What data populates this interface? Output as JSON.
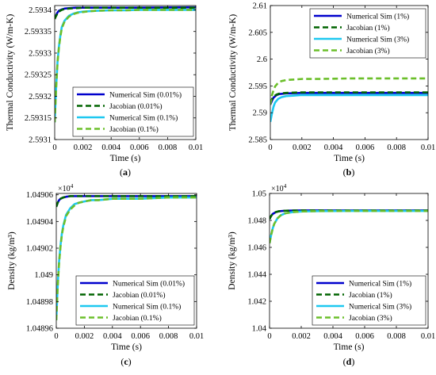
{
  "chart_data": [
    {
      "id": "a",
      "type": "line",
      "caption": "(a)",
      "xlabel": "Time (s)",
      "ylabel": "Thermal Conductivity (W/m-K)",
      "xlim": [
        0,
        0.01
      ],
      "ylim": [
        2.5931,
        2.59341
      ],
      "xticks": [
        0,
        0.002,
        0.004,
        0.006,
        0.008,
        0.01
      ],
      "xtick_labels": [
        "0",
        "0.002",
        "0.004",
        "0.006",
        "0.008",
        "0.01"
      ],
      "yticks": [
        2.5931,
        2.59315,
        2.5932,
        2.59325,
        2.5933,
        2.59335,
        2.5934
      ],
      "ytick_labels": [
        "2.5931",
        "2.59315",
        "2.5932",
        "2.59325",
        "2.5933",
        "2.59335",
        "2.5934"
      ],
      "exponent": "",
      "legend_position": "bottom-right",
      "series": [
        {
          "name": "Numerical Sim (0.01%)",
          "color": "#0000cd",
          "dash": "solid",
          "x": [
            0,
            0.0001,
            0.0002,
            0.0003,
            0.0005,
            0.0007,
            0.001,
            0.0015,
            0.002,
            0.003,
            0.005,
            0.01
          ],
          "y": [
            2.59338,
            2.593388,
            2.593394,
            2.593398,
            2.593401,
            2.593403,
            2.593404,
            2.593405,
            2.593405,
            2.593405,
            2.593405,
            2.593406
          ]
        },
        {
          "name": "Jacobian (0.01%)",
          "color": "#006400",
          "dash": "dashed",
          "x": [
            0,
            0.0001,
            0.0002,
            0.0003,
            0.0005,
            0.0007,
            0.001,
            0.0015,
            0.002,
            0.003,
            0.005,
            0.01
          ],
          "y": [
            2.593379,
            2.593386,
            2.593392,
            2.593396,
            2.5934,
            2.593402,
            2.593403,
            2.593404,
            2.593405,
            2.593405,
            2.593405,
            2.593405
          ]
        },
        {
          "name": "Numerical Sim (0.1%)",
          "color": "#1ec8f0",
          "dash": "solid",
          "x": [
            0,
            0.0001,
            0.0002,
            0.0003,
            0.0004,
            0.0005,
            0.0007,
            0.001,
            0.0013,
            0.0016,
            0.002,
            0.0025,
            0.003,
            0.004,
            0.005,
            0.006,
            0.008,
            0.01
          ],
          "y": [
            2.59314,
            2.59322,
            2.59328,
            2.593315,
            2.59334,
            2.59336,
            2.593375,
            2.593386,
            2.593391,
            2.593394,
            2.593396,
            2.593397,
            2.593398,
            2.593399,
            2.593399,
            2.5934,
            2.5934,
            2.5934
          ]
        },
        {
          "name": "Jacobian (0.1%)",
          "color": "#6bbf2a",
          "dash": "dashed",
          "x": [
            0,
            0.0001,
            0.0002,
            0.0003,
            0.0004,
            0.0005,
            0.0007,
            0.001,
            0.0013,
            0.0016,
            0.002,
            0.0025,
            0.003,
            0.004,
            0.005,
            0.006,
            0.008,
            0.01
          ],
          "y": [
            2.59314,
            2.593218,
            2.593278,
            2.593313,
            2.593338,
            2.593357,
            2.593373,
            2.593384,
            2.59339,
            2.593393,
            2.593395,
            2.593397,
            2.593398,
            2.593399,
            2.593399,
            2.5934,
            2.5934,
            2.5934
          ]
        }
      ]
    },
    {
      "id": "b",
      "type": "line",
      "caption": "(b)",
      "xlabel": "Time (s)",
      "ylabel": "Thermal Conductivity (W/m-K)",
      "xlim": [
        0,
        0.01
      ],
      "ylim": [
        2.585,
        2.61
      ],
      "xticks": [
        0,
        0.002,
        0.004,
        0.006,
        0.008,
        0.01
      ],
      "xtick_labels": [
        "0",
        "0.002",
        "0.004",
        "0.006",
        "0.008",
        "0.01"
      ],
      "yticks": [
        2.585,
        2.59,
        2.595,
        2.6,
        2.605,
        2.61
      ],
      "ytick_labels": [
        "2.585",
        "2.59",
        "2.595",
        "2.6",
        "2.605",
        "2.61"
      ],
      "exponent": "",
      "legend_position": "top-right",
      "series": [
        {
          "name": "Numerical Sim (1%)",
          "color": "#0000cd",
          "dash": "solid",
          "x": [
            0,
            0.0001,
            0.0002,
            0.0004,
            0.0006,
            0.001,
            0.0015,
            0.002,
            0.004,
            0.01
          ],
          "y": [
            2.5915,
            2.5922,
            2.5928,
            2.5933,
            2.5935,
            2.5936,
            2.59365,
            2.5937,
            2.5937,
            2.5937
          ]
        },
        {
          "name": "Jacobian (1%)",
          "color": "#006400",
          "dash": "dashed",
          "x": [
            0,
            0.0001,
            0.0002,
            0.0004,
            0.0006,
            0.001,
            0.0015,
            0.002,
            0.004,
            0.01
          ],
          "y": [
            2.5918,
            2.5925,
            2.593,
            2.5934,
            2.5936,
            2.5937,
            2.59375,
            2.5938,
            2.5938,
            2.5938
          ]
        },
        {
          "name": "Numerical Sim (3%)",
          "color": "#1ec8f0",
          "dash": "solid",
          "x": [
            0,
            0.0001,
            0.0002,
            0.0003,
            0.0005,
            0.0007,
            0.001,
            0.0015,
            0.002,
            0.003,
            0.005,
            0.01
          ],
          "y": [
            2.5883,
            2.5898,
            2.5911,
            2.5919,
            2.5926,
            2.5929,
            2.5931,
            2.5932,
            2.5933,
            2.5933,
            2.5933,
            2.5933
          ]
        },
        {
          "name": "Jacobian (3%)",
          "color": "#6bbf2a",
          "dash": "dashed",
          "x": [
            0,
            0.0001,
            0.0002,
            0.0003,
            0.0005,
            0.0007,
            0.001,
            0.0015,
            0.002,
            0.003,
            0.005,
            0.01
          ],
          "y": [
            2.5915,
            2.5932,
            2.5942,
            2.5949,
            2.5956,
            2.5959,
            2.5961,
            2.5962,
            2.5963,
            2.5963,
            2.5964,
            2.5964
          ]
        }
      ]
    },
    {
      "id": "c",
      "type": "line",
      "caption": "(c)",
      "xlabel": "Time (s)",
      "ylabel": "Density (kg/m³)",
      "xlim": [
        0,
        0.01
      ],
      "ylim": [
        1.04896,
        1.049061
      ],
      "xticks": [
        0,
        0.002,
        0.004,
        0.006,
        0.008,
        0.01
      ],
      "xtick_labels": [
        "0",
        "0.002",
        "0.004",
        "0.006",
        "0.008",
        "0.01"
      ],
      "yticks": [
        1.04896,
        1.04898,
        1.049,
        1.04902,
        1.04904,
        1.04906
      ],
      "ytick_labels": [
        "1.04896",
        "1.04898",
        "1.049",
        "1.04902",
        "1.04904",
        "1.04906"
      ],
      "exponent": "4",
      "legend_position": "bottom-right",
      "series": [
        {
          "name": "Numerical Sim (0.01%)",
          "color": "#0000cd",
          "dash": "solid",
          "x": [
            0,
            0.0001,
            0.0002,
            0.0003,
            0.0005,
            0.0007,
            0.001,
            0.0015,
            0.002,
            0.004,
            0.01
          ],
          "y": [
            1.049051,
            1.049054,
            1.049056,
            1.049057,
            1.049058,
            1.0490585,
            1.049059,
            1.049059,
            1.049059,
            1.049059,
            1.049059
          ]
        },
        {
          "name": "Jacobian (0.01%)",
          "color": "#006400",
          "dash": "dashed",
          "x": [
            0,
            0.0001,
            0.0002,
            0.0003,
            0.0005,
            0.0007,
            0.001,
            0.0015,
            0.002,
            0.004,
            0.01
          ],
          "y": [
            1.049051,
            1.049054,
            1.049056,
            1.049057,
            1.049058,
            1.0490585,
            1.049059,
            1.049059,
            1.049059,
            1.049059,
            1.049059
          ]
        },
        {
          "name": "Numerical Sim (0.1%)",
          "color": "#1ec8f0",
          "dash": "solid",
          "x": [
            0,
            0.0001,
            0.0002,
            0.0003,
            0.0004,
            0.0005,
            0.0007,
            0.001,
            0.0013,
            0.0016,
            0.002,
            0.0025,
            0.003,
            0.004,
            0.005,
            0.006,
            0.008,
            0.01
          ],
          "y": [
            1.048966,
            1.048992,
            1.04901,
            1.049022,
            1.049031,
            1.049037,
            1.049045,
            1.04905,
            1.049053,
            1.049054,
            1.049055,
            1.049056,
            1.049056,
            1.049057,
            1.049057,
            1.049057,
            1.049058,
            1.049058
          ]
        },
        {
          "name": "Jacobian (0.1%)",
          "color": "#6bbf2a",
          "dash": "dashed",
          "x": [
            0,
            0.0001,
            0.0002,
            0.0003,
            0.0004,
            0.0005,
            0.0007,
            0.001,
            0.0013,
            0.0016,
            0.002,
            0.0025,
            0.003,
            0.004,
            0.005,
            0.006,
            0.008,
            0.01
          ],
          "y": [
            1.048966,
            1.048991,
            1.049009,
            1.049021,
            1.04903,
            1.049036,
            1.049044,
            1.049049,
            1.049052,
            1.049054,
            1.049055,
            1.049056,
            1.049056,
            1.049057,
            1.049057,
            1.049057,
            1.049058,
            1.049058
          ]
        }
      ]
    },
    {
      "id": "d",
      "type": "line",
      "caption": "(d)",
      "xlabel": "Time (s)",
      "ylabel": "Density (kg/m³)",
      "xlim": [
        0,
        0.01
      ],
      "ylim": [
        1.04,
        1.05
      ],
      "xticks": [
        0,
        0.002,
        0.004,
        0.006,
        0.008,
        0.01
      ],
      "xtick_labels": [
        "0",
        "0.002",
        "0.004",
        "0.006",
        "0.008",
        "0.01"
      ],
      "yticks": [
        1.04,
        1.042,
        1.044,
        1.046,
        1.048,
        1.05
      ],
      "ytick_labels": [
        "1.04",
        "1.042",
        "1.044",
        "1.046",
        "1.048",
        "1.05"
      ],
      "exponent": "4",
      "legend_position": "bottom-right",
      "series": [
        {
          "name": "Numerical Sim (1%)",
          "color": "#0000cd",
          "dash": "solid",
          "x": [
            0,
            0.0001,
            0.0002,
            0.0004,
            0.0006,
            0.001,
            0.0015,
            0.002,
            0.004,
            0.01
          ],
          "y": [
            1.0481,
            1.04833,
            1.04848,
            1.04862,
            1.04868,
            1.04872,
            1.04873,
            1.04874,
            1.04874,
            1.04874
          ]
        },
        {
          "name": "Jacobian (1%)",
          "color": "#006400",
          "dash": "dashed",
          "x": [
            0,
            0.0001,
            0.0002,
            0.0004,
            0.0006,
            0.001,
            0.0015,
            0.002,
            0.004,
            0.01
          ],
          "y": [
            1.0481,
            1.04833,
            1.04848,
            1.04862,
            1.04868,
            1.04872,
            1.04873,
            1.04874,
            1.04874,
            1.04874
          ]
        },
        {
          "name": "Numerical Sim (3%)",
          "color": "#1ec8f0",
          "dash": "solid",
          "x": [
            0,
            0.0001,
            0.0002,
            0.0003,
            0.0005,
            0.0007,
            0.001,
            0.0015,
            0.002,
            0.003,
            0.005,
            0.01
          ],
          "y": [
            1.0463,
            1.0469,
            1.0474,
            1.04775,
            1.04815,
            1.04837,
            1.04853,
            1.04862,
            1.04866,
            1.04869,
            1.0487,
            1.0487
          ]
        },
        {
          "name": "Jacobian (3%)",
          "color": "#6bbf2a",
          "dash": "dashed",
          "x": [
            0,
            0.0001,
            0.0002,
            0.0003,
            0.0005,
            0.0007,
            0.001,
            0.0015,
            0.002,
            0.003,
            0.005,
            0.01
          ],
          "y": [
            1.0463,
            1.0469,
            1.0474,
            1.04775,
            1.04815,
            1.04837,
            1.04853,
            1.04862,
            1.04866,
            1.04869,
            1.0487,
            1.0487
          ]
        }
      ]
    }
  ]
}
